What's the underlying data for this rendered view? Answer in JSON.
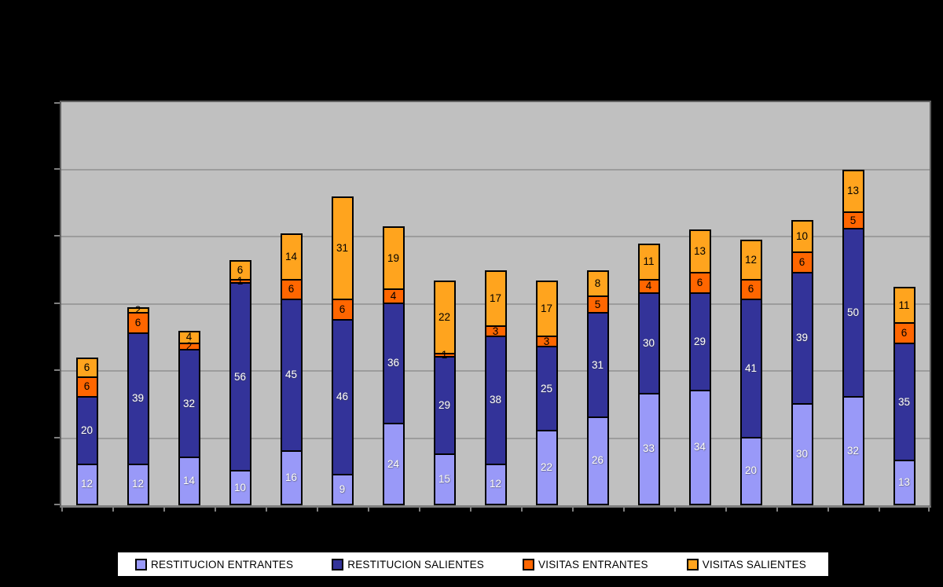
{
  "chart_data": {
    "type": "bar",
    "stacked": true,
    "title": "",
    "categories": [
      "",
      "",
      "",
      "",
      "",
      "",
      "",
      "",
      "",
      "",
      "",
      "",
      "",
      "",
      "",
      "",
      ""
    ],
    "series": [
      {
        "name": "RESTITUCION ENTRANTES",
        "color": "#9999F8",
        "label_color": "#FFFFFF",
        "textured": true,
        "values": [
          12,
          12,
          14,
          10,
          16,
          9,
          24,
          15,
          12,
          22,
          26,
          33,
          34,
          20,
          30,
          32,
          13
        ]
      },
      {
        "name": "RESTITUCION SALIENTES",
        "color": "#333399",
        "label_color": "#FFFFFF",
        "textured": false,
        "values": [
          20,
          39,
          32,
          56,
          45,
          46,
          36,
          29,
          38,
          25,
          31,
          30,
          29,
          41,
          39,
          50,
          35
        ]
      },
      {
        "name": "VISITAS ENTRANTES",
        "color": "#FF6600",
        "label_color": "#000000",
        "textured": false,
        "values": [
          6,
          6,
          2,
          1,
          6,
          6,
          4,
          1,
          3,
          3,
          5,
          4,
          6,
          6,
          6,
          5,
          6
        ]
      },
      {
        "name": "VISITAS SALIENTES",
        "color": "#FFA41E",
        "label_color": "#000000",
        "textured": true,
        "values": [
          6,
          2,
          4,
          6,
          14,
          31,
          19,
          22,
          17,
          17,
          8,
          11,
          13,
          12,
          10,
          13,
          11
        ]
      }
    ],
    "ylim": [
      0,
      120
    ],
    "ytick_interval": 20,
    "ytick_labels_visible": false,
    "xtick_labels_visible": false,
    "grid": true,
    "legend_position": "bottom",
    "colors": {
      "page_bg": "#000000",
      "plot_bg": "#C0C0C0",
      "gridline": "#9C9C9C",
      "segment_border": "#000000",
      "legend_bg": "#FFFFFF"
    }
  }
}
